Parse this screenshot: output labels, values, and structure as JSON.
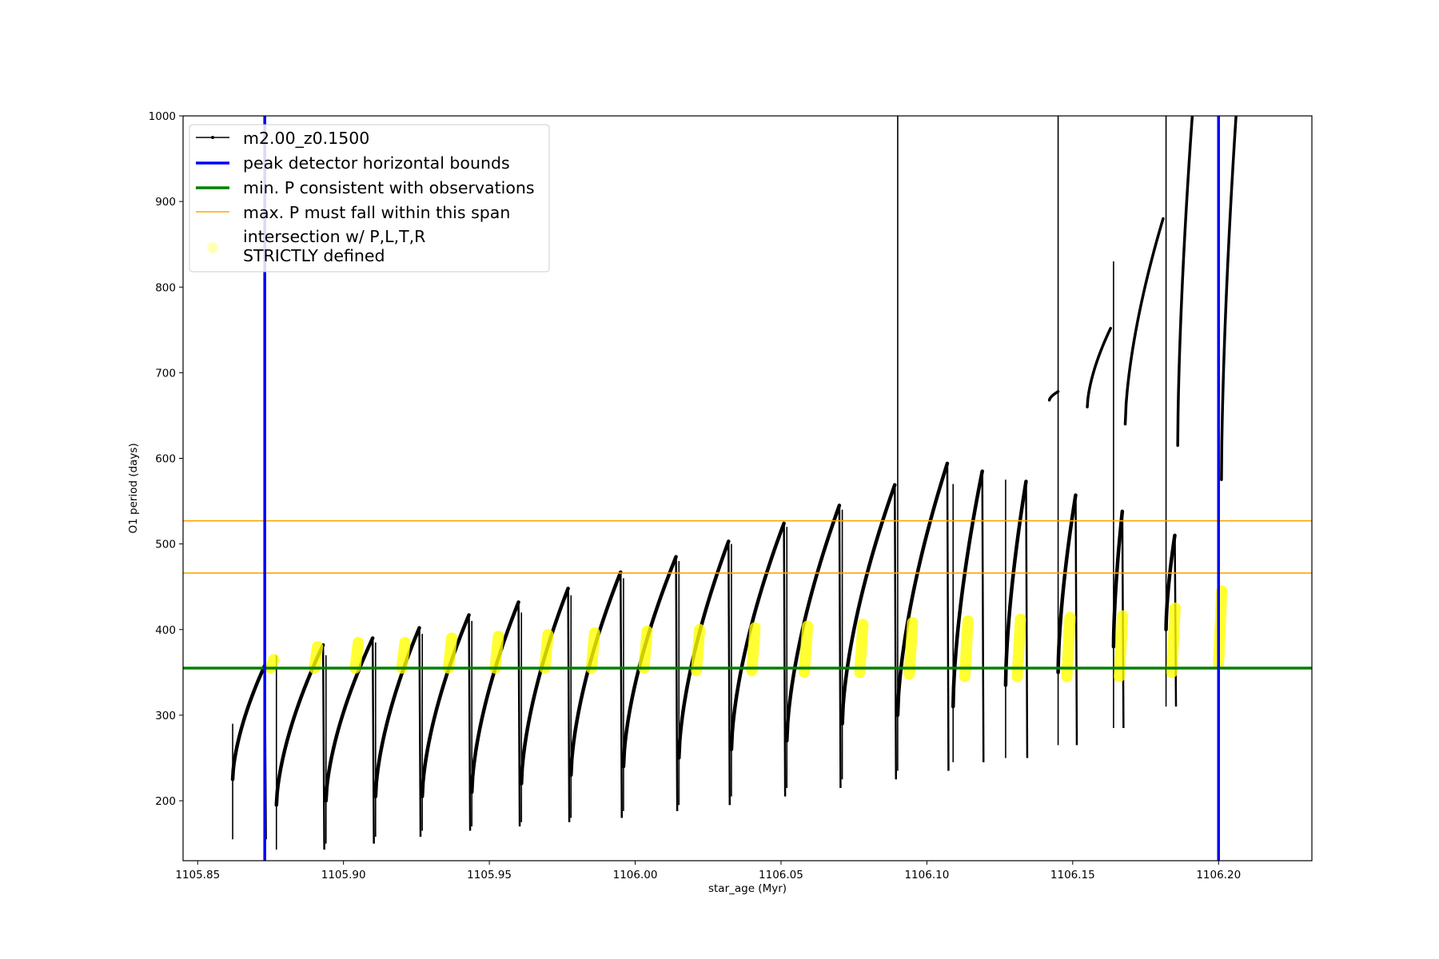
{
  "chart_data": {
    "type": "line",
    "title": "",
    "xlabel": "star_age (Myr)",
    "ylabel": "O1 period (days)",
    "xlim": [
      1105.845,
      1106.232
    ],
    "ylim": [
      130,
      1000
    ],
    "xticks": [
      1105.85,
      1105.9,
      1105.95,
      1106.0,
      1106.05,
      1106.1,
      1106.15,
      1106.2
    ],
    "xtick_labels": [
      "1105.85",
      "1105.90",
      "1105.95",
      "1106.00",
      "1106.05",
      "1106.10",
      "1106.15",
      "1106.20"
    ],
    "yticks": [
      200,
      300,
      400,
      500,
      600,
      700,
      800,
      900,
      1000
    ],
    "ytick_labels": [
      "200",
      "300",
      "400",
      "500",
      "600",
      "700",
      "800",
      "900",
      "1000"
    ],
    "legend": {
      "position": "top-left",
      "entries": [
        {
          "label": "m2.00_z0.1500",
          "style": "line-marker",
          "color": "#000000"
        },
        {
          "label": "peak detector horizontal bounds",
          "style": "thick-line",
          "color": "#0000ff"
        },
        {
          "label": "min. P consistent with observations",
          "style": "thick-line",
          "color": "#008000"
        },
        {
          "label": "max. P must fall within this span",
          "style": "thin-line",
          "color": "#ffa500"
        },
        {
          "label": "intersection w/ P,L,T,R",
          "label2": "STRICTLY defined",
          "style": "dot",
          "color": "#ffff00"
        }
      ]
    },
    "vertical_lines": {
      "name": "peak detector horizontal bounds",
      "x": [
        1105.873,
        1106.2
      ],
      "color": "#0000ff"
    },
    "horizontal_lines": [
      {
        "name": "min. P consistent with observations",
        "y": 355,
        "color": "#008000"
      },
      {
        "name": "max. P must fall within this span",
        "y": [
          466,
          527
        ],
        "color": "#ffa500"
      }
    ],
    "series": [
      {
        "name": "m2.00_z0.1500",
        "color": "#000000",
        "cycles": [
          {
            "start": 1105.862,
            "end": 1105.873,
            "p_min": 225,
            "p_max": 358,
            "drop": 155,
            "spike": 290
          },
          {
            "start": 1105.877,
            "end": 1105.893,
            "p_min": 195,
            "p_max": 382,
            "drop": 143,
            "spike": 370
          },
          {
            "start": 1105.894,
            "end": 1105.91,
            "p_min": 200,
            "p_max": 390,
            "drop": 150,
            "spike": 370
          },
          {
            "start": 1105.911,
            "end": 1105.926,
            "p_min": 205,
            "p_max": 402,
            "drop": 158,
            "spike": 385
          },
          {
            "start": 1105.927,
            "end": 1105.943,
            "p_min": 205,
            "p_max": 417,
            "drop": 165,
            "spike": 395
          },
          {
            "start": 1105.944,
            "end": 1105.96,
            "p_min": 210,
            "p_max": 432,
            "drop": 170,
            "spike": 410
          },
          {
            "start": 1105.961,
            "end": 1105.977,
            "p_min": 220,
            "p_max": 448,
            "drop": 175,
            "spike": 420
          },
          {
            "start": 1105.978,
            "end": 1105.995,
            "p_min": 230,
            "p_max": 467,
            "drop": 180,
            "spike": 440
          },
          {
            "start": 1105.996,
            "end": 1106.014,
            "p_min": 240,
            "p_max": 485,
            "drop": 188,
            "spike": 460
          },
          {
            "start": 1106.015,
            "end": 1106.032,
            "p_min": 250,
            "p_max": 503,
            "drop": 195,
            "spike": 480
          },
          {
            "start": 1106.033,
            "end": 1106.051,
            "p_min": 260,
            "p_max": 524,
            "drop": 205,
            "spike": 500
          },
          {
            "start": 1106.052,
            "end": 1106.07,
            "p_min": 270,
            "p_max": 545,
            "drop": 215,
            "spike": 520
          },
          {
            "start": 1106.071,
            "end": 1106.089,
            "p_min": 290,
            "p_max": 569,
            "drop": 225,
            "spike": 540
          },
          {
            "start": 1106.09,
            "end": 1106.107,
            "p_min": 300,
            "p_max": 594,
            "drop": 235,
            "spike": 1000
          },
          {
            "start": 1106.109,
            "end": 1106.119,
            "p_min": 310,
            "p_max": 585,
            "drop": 245,
            "spike": 570
          },
          {
            "start": 1106.127,
            "end": 1106.134,
            "p_min": 335,
            "p_max": 573,
            "drop": 250,
            "spike": 575
          },
          {
            "start": 1106.145,
            "end": 1106.151,
            "p_min": 350,
            "p_max": 557,
            "drop": 265,
            "spike": 1000
          },
          {
            "start": 1106.164,
            "end": 1106.167,
            "p_min": 380,
            "p_max": 538,
            "drop": 285,
            "spike": 830
          },
          {
            "start": 1106.182,
            "end": 1106.185,
            "p_min": 400,
            "p_max": 510,
            "drop": 310,
            "spike": 1000
          }
        ],
        "upper_branches": [
          {
            "start": 1106.142,
            "end": 1106.145,
            "p_min": 668,
            "p_max": 678
          },
          {
            "start": 1106.155,
            "end": 1106.163,
            "p_min": 660,
            "p_max": 752
          },
          {
            "start": 1106.168,
            "end": 1106.181,
            "p_min": 640,
            "p_max": 880
          },
          {
            "start": 1106.186,
            "end": 1106.191,
            "p_min": 615,
            "p_max": 1000
          },
          {
            "start": 1106.201,
            "end": 1106.206,
            "p_min": 575,
            "p_max": 1000
          }
        ]
      },
      {
        "name": "intersection w/ P,L,T,R STRICTLY defined",
        "color": "#ffff00",
        "clusters": [
          {
            "x": 1105.875,
            "p_low": 355,
            "p_high": 365
          },
          {
            "x": 1105.89,
            "p_low": 355,
            "p_high": 380
          },
          {
            "x": 1105.904,
            "p_low": 355,
            "p_high": 385
          },
          {
            "x": 1105.92,
            "p_low": 355,
            "p_high": 385
          },
          {
            "x": 1105.936,
            "p_low": 355,
            "p_high": 390
          },
          {
            "x": 1105.952,
            "p_low": 355,
            "p_high": 392
          },
          {
            "x": 1105.969,
            "p_low": 355,
            "p_high": 394
          },
          {
            "x": 1105.985,
            "p_low": 355,
            "p_high": 396
          },
          {
            "x": 1106.003,
            "p_low": 355,
            "p_high": 398
          },
          {
            "x": 1106.021,
            "p_low": 352,
            "p_high": 400
          },
          {
            "x": 1106.04,
            "p_low": 352,
            "p_high": 402
          },
          {
            "x": 1106.058,
            "p_low": 350,
            "p_high": 404
          },
          {
            "x": 1106.077,
            "p_low": 350,
            "p_high": 406
          },
          {
            "x": 1106.094,
            "p_low": 348,
            "p_high": 408
          },
          {
            "x": 1106.113,
            "p_low": 345,
            "p_high": 410
          },
          {
            "x": 1106.131,
            "p_low": 345,
            "p_high": 412
          },
          {
            "x": 1106.148,
            "p_low": 345,
            "p_high": 414
          },
          {
            "x": 1106.166,
            "p_low": 345,
            "p_high": 416
          },
          {
            "x": 1106.184,
            "p_low": 350,
            "p_high": 425
          },
          {
            "x": 1106.2,
            "p_low": 360,
            "p_high": 445
          }
        ]
      }
    ]
  }
}
